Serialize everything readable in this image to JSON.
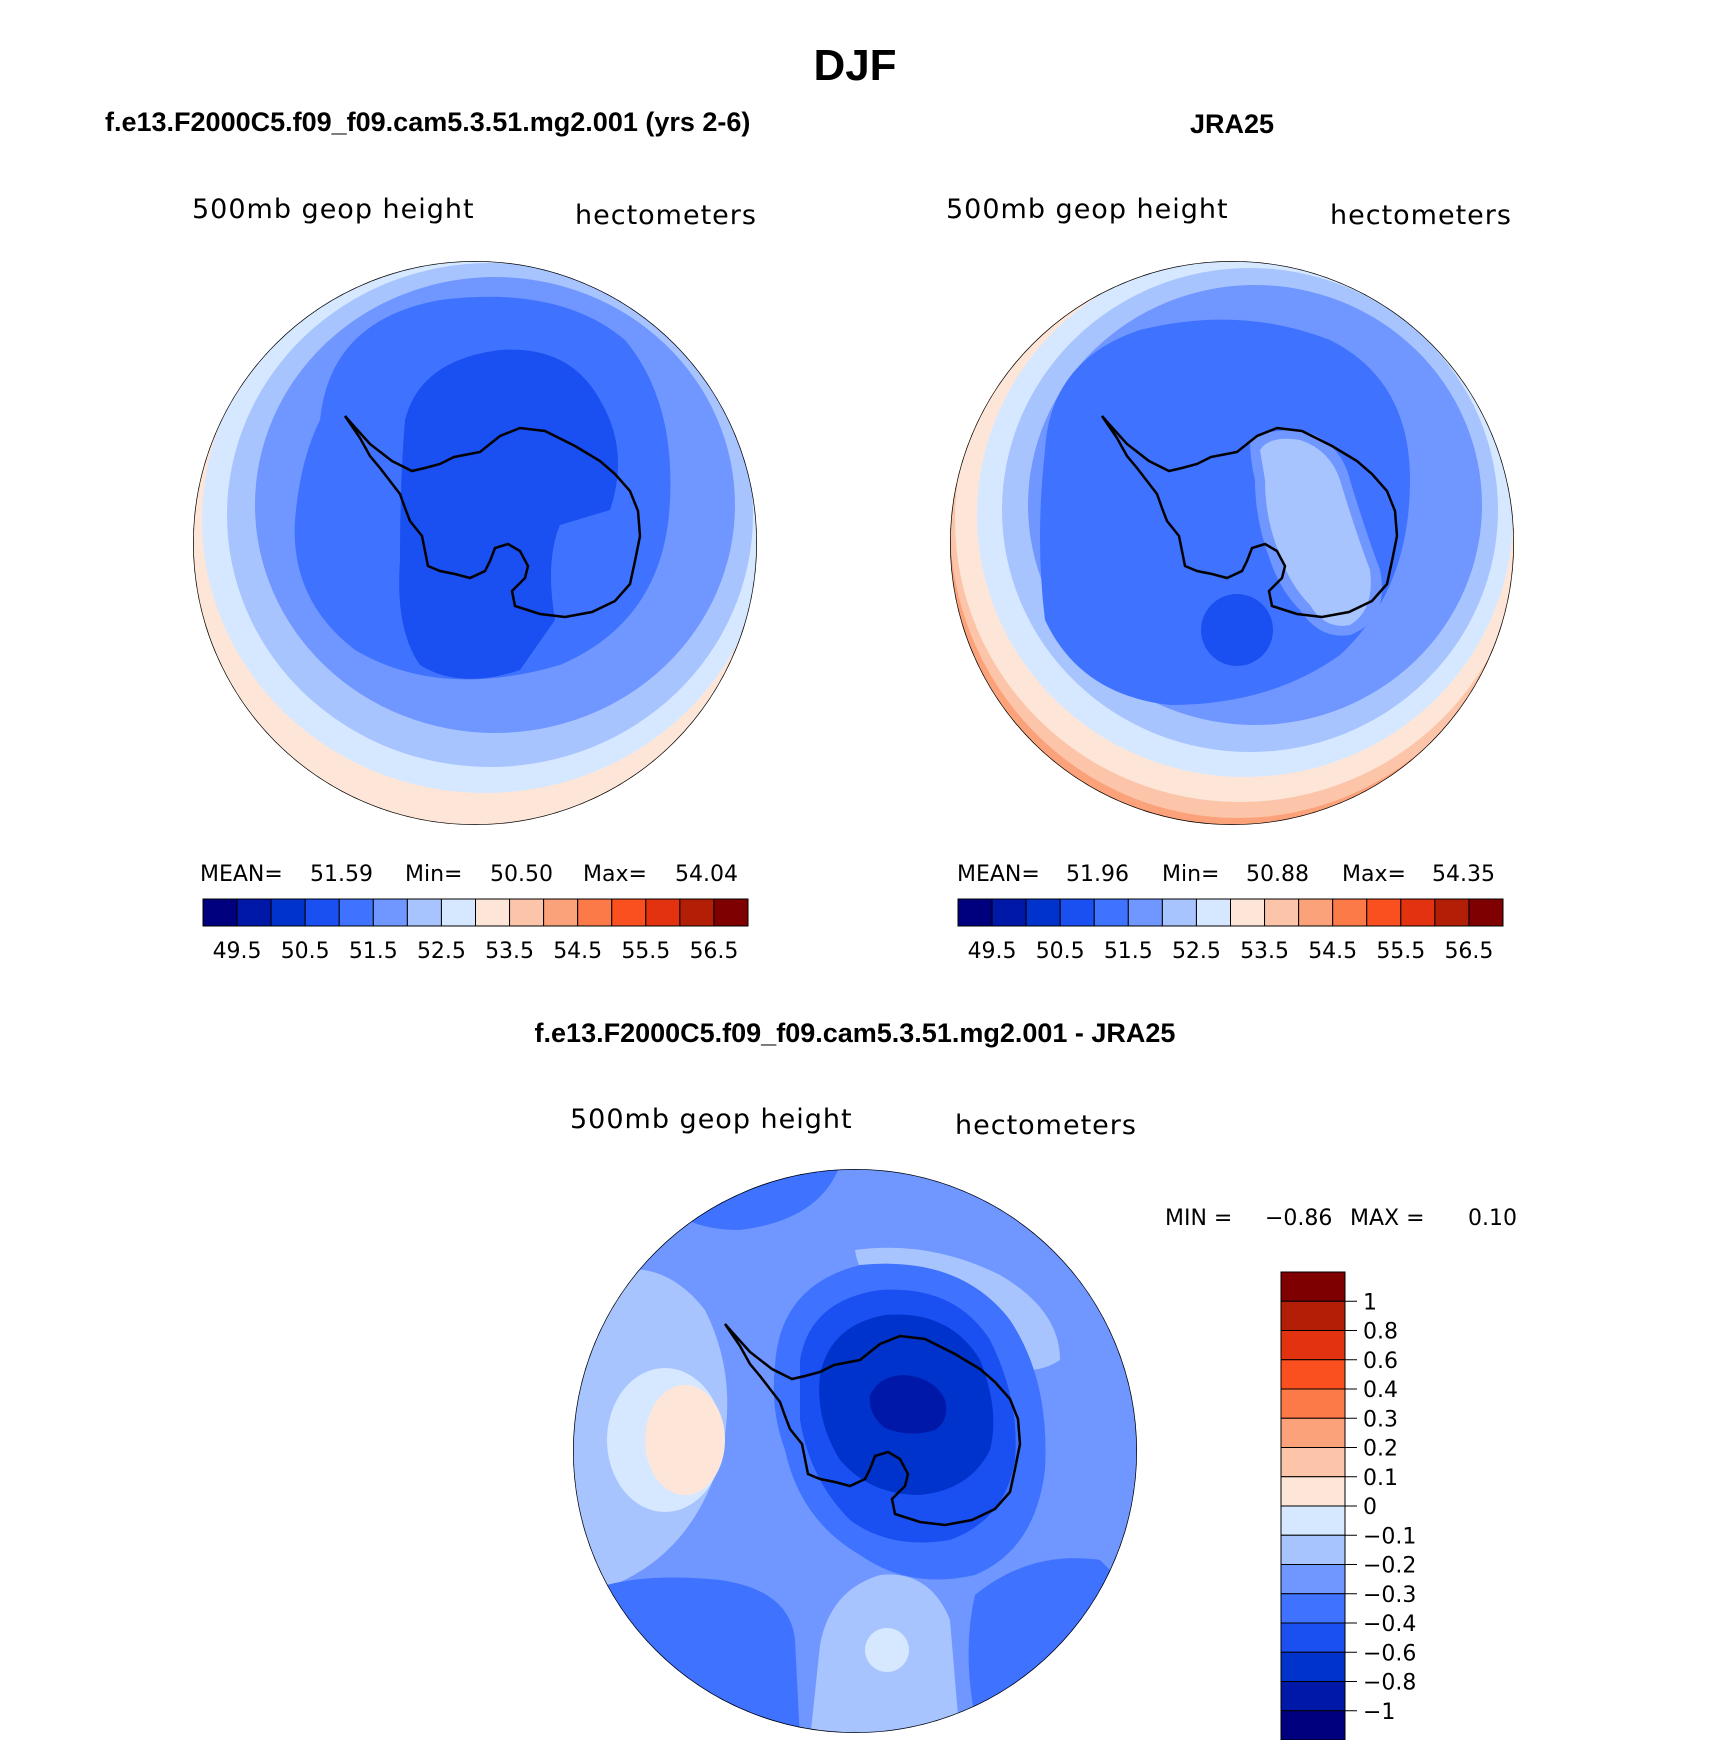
{
  "page": {
    "title": "DJF"
  },
  "colors": {
    "ramp": [
      "#00007f",
      "#0018a8",
      "#0033cc",
      "#1a4ff2",
      "#3f73ff",
      "#7096ff",
      "#a8c4ff",
      "#d6e8ff",
      "#fde6d8",
      "#fcc5aa",
      "#fba27a",
      "#fc7a47",
      "#fa4f1e",
      "#e2320f",
      "#b31e06",
      "#7f0000"
    ],
    "coastline": "#000000"
  },
  "chart_data": [
    {
      "type": "heatmap",
      "projection": "south-polar-stereographic",
      "title": "f.e13.F2000C5.f09_f09.cam5.3.51.mg2.001 (yrs 2-6)",
      "field_label": "500mb geop height",
      "units_label": "hectometers",
      "stats": {
        "mean_label": "MEAN=",
        "mean": "51.59",
        "min_label": "Min=",
        "min": "50.50",
        "max_label": "Max=",
        "max": "54.04"
      },
      "colorbar": {
        "orientation": "horizontal",
        "tick_labels": [
          "49.5",
          "50.5",
          "51.5",
          "52.5",
          "53.5",
          "54.5",
          "55.5",
          "56.5"
        ]
      },
      "contour_bands": [
        {
          "level": "53.5-54.0",
          "color_index": 8
        },
        {
          "level": "53.0-53.5",
          "color_index": 7
        },
        {
          "level": "52.5-53.0",
          "color_index": 6
        },
        {
          "level": "52.0-52.5",
          "color_index": 5
        },
        {
          "level": "51.5-52.0",
          "color_index": 4
        },
        {
          "level": "51.0-51.5",
          "color_index": 3
        }
      ]
    },
    {
      "type": "heatmap",
      "projection": "south-polar-stereographic",
      "title": "JRA25",
      "field_label": "500mb geop height",
      "units_label": "hectometers",
      "stats": {
        "mean_label": "MEAN=",
        "mean": "51.96",
        "min_label": "Min=",
        "min": "50.88",
        "max_label": "Max=",
        "max": "54.35"
      },
      "colorbar": {
        "orientation": "horizontal",
        "tick_labels": [
          "49.5",
          "50.5",
          "51.5",
          "52.5",
          "53.5",
          "54.5",
          "55.5",
          "56.5"
        ]
      },
      "contour_bands": [
        {
          "level": "54.0-54.5",
          "color_index": 9
        },
        {
          "level": "53.5-54.0",
          "color_index": 8
        },
        {
          "level": "53.0-53.5",
          "color_index": 7
        },
        {
          "level": "52.5-53.0",
          "color_index": 6
        },
        {
          "level": "52.0-52.5",
          "color_index": 5
        },
        {
          "level": "51.5-52.0",
          "color_index": 4
        },
        {
          "level": "51.0-51.5",
          "color_index": 3
        }
      ]
    },
    {
      "type": "heatmap",
      "projection": "south-polar-stereographic",
      "title": "f.e13.F2000C5.f09_f09.cam5.3.51.mg2.001 - JRA25",
      "field_label": "500mb geop height",
      "units_label": "hectometers",
      "stats": {
        "min_label": "MIN =",
        "min": "−0.86",
        "max_label": "MAX =",
        "max": "0.10"
      },
      "colorbar": {
        "orientation": "vertical",
        "tick_labels": [
          "1",
          "0.8",
          "0.6",
          "0.4",
          "0.3",
          "0.2",
          "0.1",
          "0",
          "−0.1",
          "−0.2",
          "−0.3",
          "−0.4",
          "−0.6",
          "−0.8",
          "−1"
        ],
        "colors": [
          "#7f0000",
          "#b31e06",
          "#e2320f",
          "#fa4f1e",
          "#fc7a47",
          "#fba27a",
          "#fcc5aa",
          "#fde6d8",
          "#d6e8ff",
          "#a8c4ff",
          "#7096ff",
          "#3f73ff",
          "#1a4ff2",
          "#0033cc",
          "#0018a8",
          "#00007f"
        ]
      },
      "contour_bands": [
        {
          "level": "-0.3 to -0.2",
          "color_index": 6
        },
        {
          "level": "-0.4 to -0.3",
          "color_index": 4
        },
        {
          "level": "-0.6 to -0.4",
          "color_index": 3
        },
        {
          "level": "-0.8 to -0.6",
          "color_index": 2
        },
        {
          "level": "-1 to -0.8",
          "color_index": 1
        }
      ]
    }
  ]
}
